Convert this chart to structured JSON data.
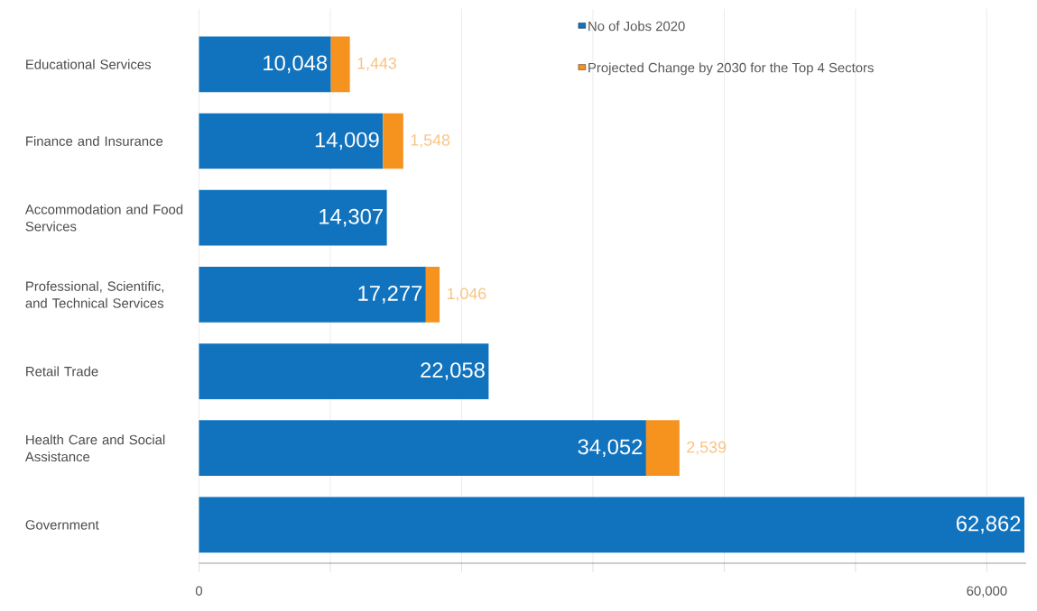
{
  "chart_data": {
    "type": "bar",
    "orientation": "horizontal",
    "stacked": true,
    "grid": "x",
    "legend": "top right",
    "categories": [
      "Educational Services",
      "Finance and Insurance",
      "Accommodation and Food Services",
      "Professional, Scientific, and Technical Services",
      "Retail Trade",
      "Health Care and Social Assistance",
      "Government"
    ],
    "series": [
      {
        "name": "No of Jobs 2020",
        "color": "#1173be",
        "values": [
          10048,
          14009,
          14307,
          17277,
          22058,
          34052,
          62862
        ],
        "value_labels": [
          "10,048",
          "14,009",
          "14,307",
          "17,277",
          "22,058",
          "34,052",
          "62,862"
        ]
      },
      {
        "name": "Projected Change by 2030 for the Top 4 Sectors",
        "color": "#f6921e",
        "values": [
          1443,
          1548,
          null,
          1046,
          null,
          2539,
          null
        ],
        "value_labels": [
          "1,443",
          "1,548",
          null,
          "1,046",
          null,
          "2,539",
          null
        ]
      }
    ],
    "xlim": [
      0,
      63000
    ],
    "xticks": [
      0,
      {
        "value": 10000,
        "label": null
      },
      {
        "value": 20000,
        "label": null
      },
      {
        "value": 30000,
        "label": null
      },
      {
        "value": 40000,
        "label": null
      },
      {
        "value": 50000,
        "label": null
      },
      {
        "value": 60000,
        "label": "60,000"
      }
    ]
  }
}
